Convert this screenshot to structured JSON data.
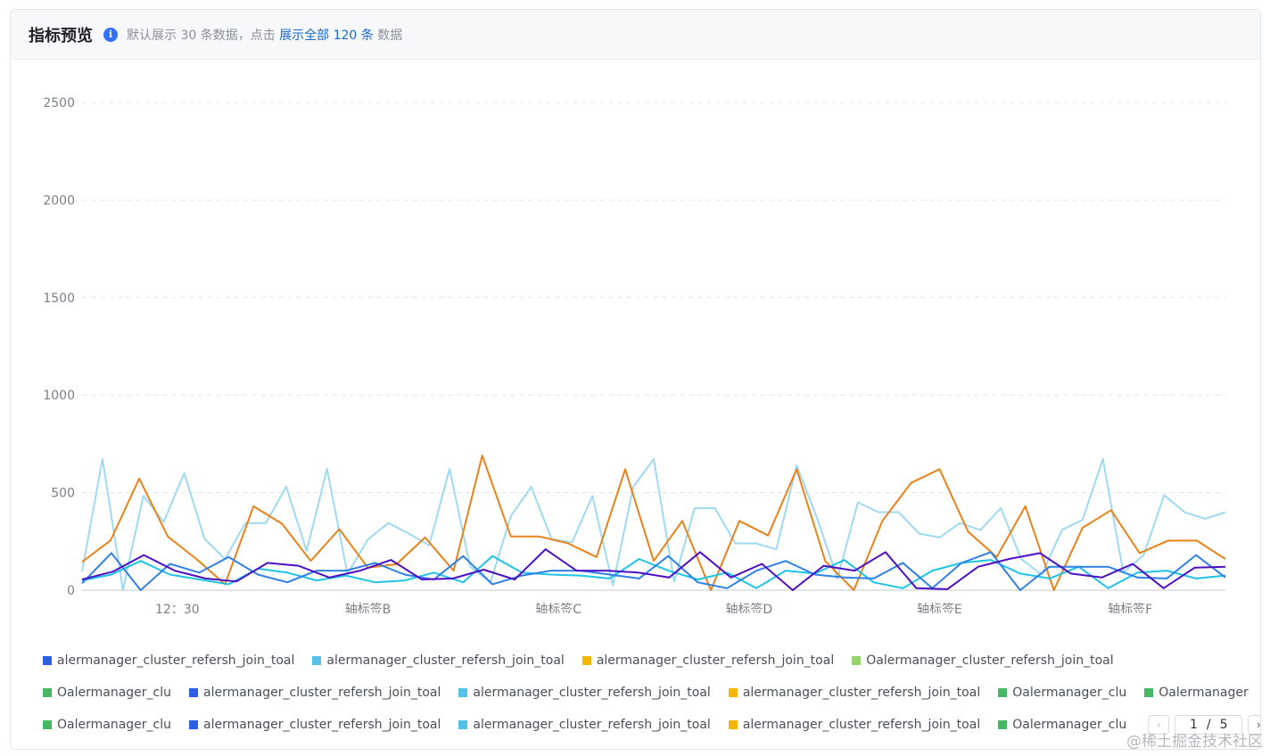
{
  "header": {
    "title": "指标预览",
    "desc_prefix": "默认展示 30 条数据，点击",
    "desc_link": "展示全部 120 条",
    "desc_suffix": "数据"
  },
  "chart_data": {
    "type": "line",
    "ylim": [
      0,
      2500
    ],
    "yticks": [
      0,
      500,
      1000,
      1500,
      2000,
      2500
    ],
    "xtick_labels": [
      "12：30",
      "轴标签B",
      "轴标签C",
      "轴标签D",
      "轴标签E",
      "轴标签F"
    ],
    "grid": true,
    "series": [
      {
        "color": "#9fd9f2",
        "values": [
          95,
          672,
          0,
          484,
          350,
          600,
          263,
          160,
          344,
          344,
          530,
          200,
          622,
          83,
          260,
          344,
          290,
          230,
          622,
          122,
          40,
          380,
          530,
          262,
          245,
          483,
          24,
          530,
          672,
          44,
          420,
          420,
          240,
          240,
          210,
          640,
          370,
          60,
          450,
          400,
          400,
          290,
          270,
          344,
          308,
          421,
          160,
          80,
          310,
          360,
          672,
          90,
          180,
          487,
          400,
          366,
          400
        ]
      },
      {
        "color": "#e8821a",
        "values": [
          145,
          255,
          572,
          275,
          160,
          30,
          430,
          340,
          150,
          313,
          115,
          133,
          270,
          100,
          690,
          275,
          275,
          240,
          170,
          620,
          150,
          355,
          0,
          355,
          280,
          620,
          150,
          0,
          355,
          550,
          620,
          300,
          170,
          430,
          0,
          320,
          410,
          190,
          254,
          254,
          160
        ]
      },
      {
        "color": "#1ec3e6",
        "values": [
          50,
          80,
          150,
          80,
          55,
          30,
          110,
          90,
          50,
          75,
          40,
          50,
          90,
          40,
          175,
          90,
          80,
          75,
          60,
          160,
          100,
          55,
          90,
          10,
          100,
          85,
          155,
          40,
          10,
          100,
          140,
          155,
          85,
          60,
          120,
          10,
          90,
          100,
          60,
          75
        ]
      },
      {
        "color": "#2f80e6",
        "values": [
          35,
          190,
          0,
          135,
          90,
          170,
          80,
          40,
          100,
          100,
          140,
          80,
          55,
          175,
          30,
          75,
          100,
          100,
          80,
          60,
          175,
          40,
          10,
          100,
          150,
          80,
          65,
          60,
          140,
          10,
          140,
          195,
          0,
          120,
          120,
          120,
          65,
          60,
          180,
          65
        ]
      },
      {
        "color": "#4d10c4",
        "values": [
          55,
          95,
          180,
          100,
          60,
          45,
          140,
          125,
          65,
          100,
          155,
          55,
          60,
          105,
          55,
          210,
          100,
          100,
          90,
          65,
          195,
          65,
          135,
          0,
          125,
          100,
          195,
          10,
          5,
          120,
          160,
          190,
          85,
          65,
          135,
          10,
          115,
          120
        ]
      }
    ]
  },
  "legend": {
    "rows": [
      [
        {
          "label": "alermanager_cluster_refersh_join_toal",
          "color": "#2b5fe6"
        },
        {
          "label": "alermanager_cluster_refersh_join_toal",
          "color": "#56c1e6"
        },
        {
          "label": "alermanager_cluster_refersh_join_toal",
          "color": "#f2b705"
        },
        {
          "label": "Oalermanager_cluster_refersh_join_toal",
          "color": "#93d667"
        }
      ],
      [
        {
          "label": "Oalermanager_clu",
          "color": "#46b864"
        },
        {
          "label": "alermanager_cluster_refersh_join_toal",
          "color": "#2b5fe6"
        },
        {
          "label": "alermanager_cluster_refersh_join_toal",
          "color": "#56c1e6"
        },
        {
          "label": "alermanager_cluster_refersh_join_toal",
          "color": "#f2b705"
        },
        {
          "label": "Oalermanager_clu",
          "color": "#46b864"
        },
        {
          "label": "Oalermanager",
          "color": "#46b864"
        }
      ],
      [
        {
          "label": "Oalermanager_clu",
          "color": "#46b864"
        },
        {
          "label": "alermanager_cluster_refersh_join_toal",
          "color": "#2b5fe6"
        },
        {
          "label": "alermanager_cluster_refersh_join_toal",
          "color": "#56c1e6"
        },
        {
          "label": "alermanager_cluster_refersh_join_toal",
          "color": "#f2b705"
        },
        {
          "label": "Oalermanager_clu",
          "color": "#46b864"
        }
      ]
    ],
    "pager": {
      "current": "1",
      "separator": "/",
      "total": "5",
      "prev_icon": "chevron-left-icon",
      "next_icon": "chevron-right-icon"
    }
  },
  "watermark": "@稀土掘金技术社区"
}
